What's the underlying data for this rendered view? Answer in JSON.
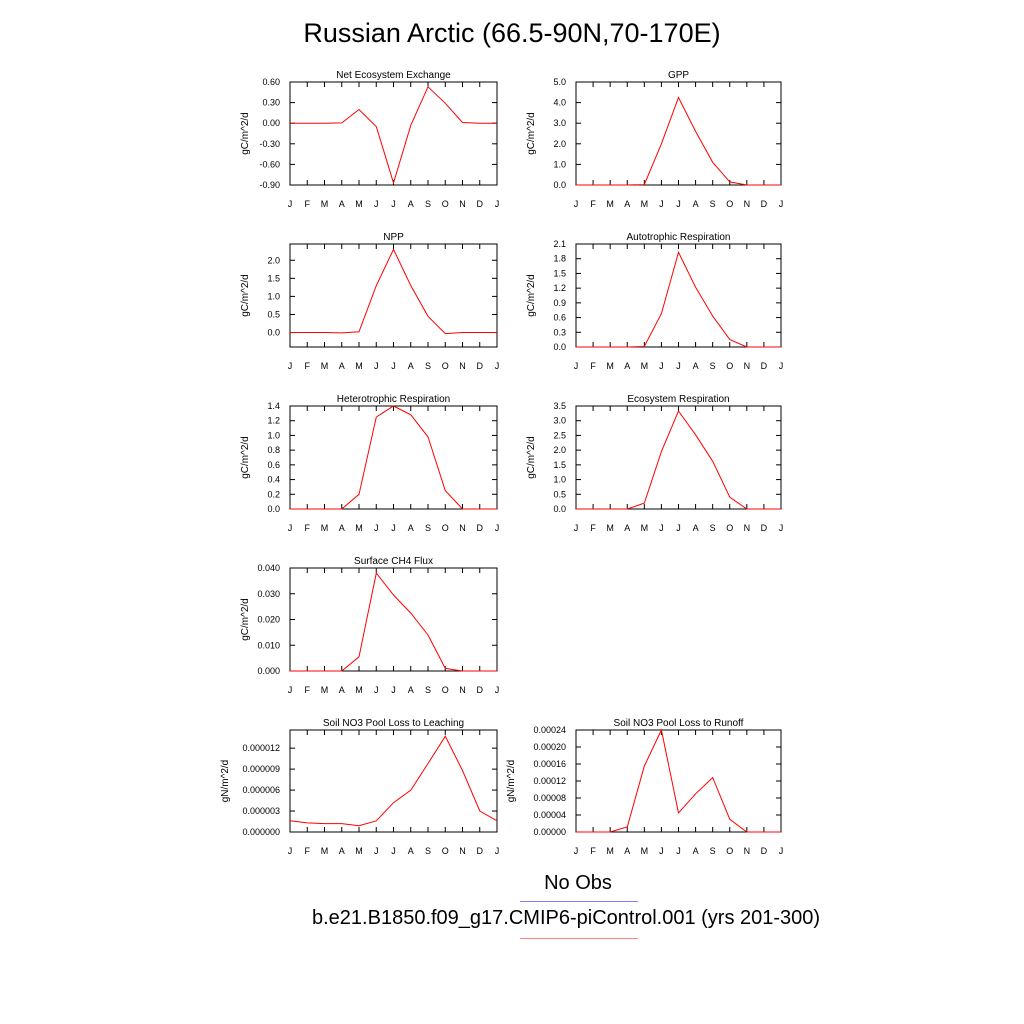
{
  "title": "Russian Arctic (66.5-90N,70-170E)",
  "legend": {
    "obs_label": "No Obs",
    "case_label": "b.e21.B1850.f09_g17.CMIP6-piControl.001 (yrs 201-300)",
    "obs_color": "#8080ff",
    "case_color": "#ff8080",
    "line_color": "#ff0000"
  },
  "chart_data": [
    {
      "type": "line",
      "title": "Net Ecosystem Exchange",
      "ylabel": "gC/m^2/d",
      "categories": [
        "J",
        "F",
        "M",
        "A",
        "M",
        "J",
        "J",
        "A",
        "S",
        "O",
        "N",
        "D",
        "J"
      ],
      "ylim": [
        -0.9,
        0.6
      ],
      "yticks": [
        "0.60",
        "0.30",
        "0.00",
        "-0.30",
        "-0.60",
        "-0.90"
      ],
      "series": [
        {
          "values": [
            0.0,
            0.0,
            0.0,
            0.005,
            0.2,
            -0.05,
            -0.87,
            -0.03,
            0.53,
            0.29,
            0.01,
            0.0,
            0.0
          ]
        }
      ]
    },
    {
      "type": "line",
      "title": "GPP",
      "ylabel": "gC/m^2/d",
      "categories": [
        "J",
        "F",
        "M",
        "A",
        "M",
        "J",
        "J",
        "A",
        "S",
        "O",
        "N",
        "D",
        "J"
      ],
      "ylim": [
        0,
        5.0
      ],
      "yticks": [
        "5.0",
        "4.0",
        "3.0",
        "2.0",
        "1.0",
        "0.0"
      ],
      "series": [
        {
          "values": [
            0.0,
            0.0,
            0.0,
            0.0,
            0.02,
            2.0,
            4.25,
            2.6,
            1.1,
            0.15,
            0.0,
            0.0,
            0.0
          ]
        }
      ]
    },
    {
      "type": "line",
      "title": "NPP",
      "ylabel": "gC/m^2/d",
      "categories": [
        "J",
        "F",
        "M",
        "A",
        "M",
        "J",
        "J",
        "A",
        "S",
        "O",
        "N",
        "D",
        "J"
      ],
      "ylim": [
        -0.4,
        2.45
      ],
      "yticks": [
        "2.0",
        "1.5",
        "1.0",
        "0.5",
        "0.0"
      ],
      "series": [
        {
          "values": [
            0.0,
            0.0,
            0.0,
            -0.01,
            0.02,
            1.3,
            2.3,
            1.3,
            0.45,
            -0.03,
            0.0,
            0.0,
            0.0
          ]
        }
      ]
    },
    {
      "type": "line",
      "title": "Autotrophic Respiration",
      "ylabel": "gC/m^2/d",
      "categories": [
        "J",
        "F",
        "M",
        "A",
        "M",
        "J",
        "J",
        "A",
        "S",
        "O",
        "N",
        "D",
        "J"
      ],
      "ylim": [
        0,
        2.1
      ],
      "yticks": [
        "2.1",
        "1.8",
        "1.5",
        "1.2",
        "0.9",
        "0.6",
        "0.3",
        "0.0"
      ],
      "series": [
        {
          "values": [
            0.0,
            0.0,
            0.0,
            0.0,
            0.01,
            0.68,
            1.93,
            1.22,
            0.63,
            0.15,
            0.0,
            0.0,
            0.0
          ]
        }
      ]
    },
    {
      "type": "line",
      "title": "Heterotrophic Respiration",
      "ylabel": "gC/m^2/d",
      "categories": [
        "J",
        "F",
        "M",
        "A",
        "M",
        "J",
        "J",
        "A",
        "S",
        "O",
        "N",
        "D",
        "J"
      ],
      "ylim": [
        0,
        1.4
      ],
      "yticks": [
        "1.4",
        "1.2",
        "1.0",
        "0.8",
        "0.6",
        "0.4",
        "0.2",
        "0.0"
      ],
      "series": [
        {
          "values": [
            0.0,
            0.0,
            0.0,
            0.0,
            0.2,
            1.25,
            1.4,
            1.28,
            0.98,
            0.25,
            0.0,
            0.0,
            0.0
          ]
        }
      ]
    },
    {
      "type": "line",
      "title": "Ecosystem Respiration",
      "ylabel": "gC/m^2/d",
      "categories": [
        "J",
        "F",
        "M",
        "A",
        "M",
        "J",
        "J",
        "A",
        "S",
        "O",
        "N",
        "D",
        "J"
      ],
      "ylim": [
        0,
        3.5
      ],
      "yticks": [
        "3.5",
        "3.0",
        "2.5",
        "2.0",
        "1.5",
        "1.0",
        "0.5",
        "0.0"
      ],
      "series": [
        {
          "values": [
            0.0,
            0.0,
            0.0,
            0.0,
            0.2,
            1.95,
            3.33,
            2.52,
            1.62,
            0.4,
            0.0,
            0.0,
            0.0
          ]
        }
      ]
    },
    {
      "type": "line",
      "title": "Surface CH4 Flux",
      "ylabel": "gC/m^2/d",
      "categories": [
        "J",
        "F",
        "M",
        "A",
        "M",
        "J",
        "J",
        "A",
        "S",
        "O",
        "N",
        "D",
        "J"
      ],
      "ylim": [
        0,
        0.04
      ],
      "yticks": [
        "0.040",
        "0.030",
        "0.020",
        "0.010",
        "0.000"
      ],
      "series": [
        {
          "values": [
            0.0,
            0.0,
            0.0,
            0.0,
            0.0055,
            0.038,
            0.0295,
            0.0225,
            0.014,
            0.001,
            0.0,
            0.0,
            0.0
          ]
        }
      ]
    },
    {
      "type": "line",
      "title": "Soil NO3 Pool Loss to Leaching",
      "ylabel": "gN/m^2/d",
      "categories": [
        "J",
        "F",
        "M",
        "A",
        "M",
        "J",
        "J",
        "A",
        "S",
        "O",
        "N",
        "D",
        "J"
      ],
      "ylim": [
        0,
        1.46e-05
      ],
      "yticks": [
        "0.000012",
        "0.000009",
        "0.000006",
        "0.000003",
        "0.000000"
      ],
      "series": [
        {
          "values": [
            1.6e-06,
            1.3e-06,
            1.2e-06,
            1.2e-06,
            9e-07,
            1.6e-06,
            4.2e-06,
            6e-06,
            9.8e-06,
            1.37e-05,
            8.8e-06,
            3e-06,
            1.6e-06
          ]
        }
      ]
    },
    {
      "type": "line",
      "title": "Soil NO3 Pool Loss to Runoff",
      "ylabel": "gN/m^2/d",
      "categories": [
        "J",
        "F",
        "M",
        "A",
        "M",
        "J",
        "J",
        "A",
        "S",
        "O",
        "N",
        "D",
        "J"
      ],
      "ylim": [
        0,
        0.00024
      ],
      "yticks": [
        "0.00024",
        "0.00020",
        "0.00016",
        "0.00012",
        "0.00008",
        "0.00004",
        "0.00000"
      ],
      "series": [
        {
          "values": [
            0.0,
            0.0,
            0.0,
            1.2e-05,
            0.000155,
            0.00024,
            4.5e-05,
            9e-05,
            0.000128,
            3e-05,
            0.0,
            0.0,
            0.0
          ]
        }
      ]
    }
  ]
}
